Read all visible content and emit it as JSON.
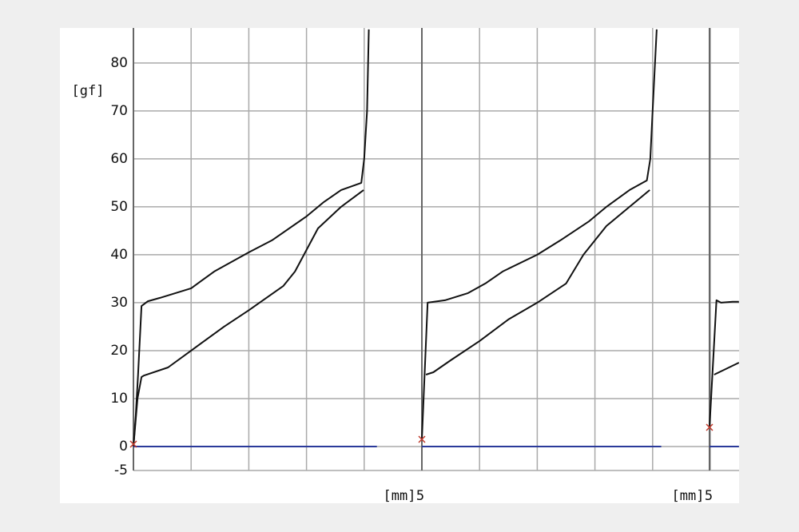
{
  "chart_data": {
    "type": "line",
    "ylabel": "[gf]",
    "ylim": [
      -5,
      87.3
    ],
    "yticks": [
      80,
      70,
      60,
      50,
      40,
      30,
      20,
      10,
      0,
      -5
    ],
    "grid": true,
    "panels": [
      {
        "xlabel": "[mm]",
        "xlim": [
          0,
          5
        ],
        "xticks": [
          {
            "value": 0,
            "label": null
          },
          {
            "value": 1,
            "label": null
          },
          {
            "value": 2,
            "label": null
          },
          {
            "value": 3,
            "label": null
          },
          {
            "value": 4,
            "label": null
          },
          5
        ],
        "marker": {
          "x": 0,
          "value": 0.5,
          "color": "#c0392b"
        },
        "series": [
          {
            "color": "#111111",
            "x": [
              0,
              0.04,
              0.08,
              0.14,
              0.25,
              0.46,
              1.0,
              1.4,
              2.0,
              2.4,
              3.0,
              3.3,
              3.6,
              3.95,
              4.0,
              4.05,
              4.08
            ],
            "values": [
              0,
              6.5,
              15,
              29.3,
              30.3,
              31,
              33,
              36.5,
              40.5,
              43,
              48,
              51,
              53.5,
              55,
              60,
              70,
              87
            ]
          },
          {
            "color": "#111111",
            "x": [
              0,
              0.07,
              0.14,
              0.18,
              0.6,
              1.0,
              1.57,
              2.01,
              2.6,
              2.8,
              3.0,
              3.2,
              3.6,
              3.99
            ],
            "values": [
              0,
              10,
              14.5,
              14.8,
              16.5,
              20,
              25,
              28.5,
              33.5,
              36.5,
              41,
              45.5,
              50,
              53.5
            ]
          },
          {
            "color": "#2b3a9a",
            "x": [
              0,
              4.22
            ],
            "values": [
              0,
              0
            ]
          }
        ]
      },
      {
        "xlabel": "[mm]",
        "xlim": [
          0,
          5
        ],
        "xticks": [
          {
            "value": 0,
            "label": null
          },
          {
            "value": 1,
            "label": null
          },
          {
            "value": 2,
            "label": null
          },
          {
            "value": 3,
            "label": null
          },
          {
            "value": 4,
            "label": null
          },
          5
        ],
        "marker": {
          "x": 0,
          "value": 1.5,
          "color": "#c0392b"
        },
        "series": [
          {
            "color": "#111111",
            "x": [
              0,
              0.1,
              0.4,
              0.8,
              1.1,
              1.4,
              2.0,
              2.4,
              2.9,
              3.2,
              3.6,
              3.9,
              3.96,
              4.0,
              4.07
            ],
            "values": [
              1.5,
              30,
              30.5,
              32,
              34,
              36.5,
              40,
              43,
              47,
              50,
              53.5,
              55.5,
              60,
              70,
              87
            ]
          },
          {
            "color": "#111111",
            "x": [
              0.07,
              0.2,
              0.5,
              1.0,
              1.5,
              2.0,
              2.5,
              2.8,
              3.2,
              3.6,
              3.95
            ],
            "values": [
              15,
              15.5,
              18,
              22,
              26.5,
              30,
              34,
              40,
              46,
              50,
              53.5
            ]
          },
          {
            "color": "#2b3a9a",
            "x": [
              0,
              4.15
            ],
            "values": [
              0,
              0
            ]
          }
        ]
      },
      {
        "xlim": [
          0,
          0.51
        ],
        "xticks": [
          {
            "value": 0,
            "label": null
          }
        ],
        "marker": {
          "x": 0,
          "value": 4,
          "color": "#c0392b"
        },
        "series": [
          {
            "color": "#111111",
            "x": [
              0,
              0.12,
              0.2,
              0.4,
              0.51
            ],
            "values": [
              4,
              30.5,
              30,
              30.2,
              30.2
            ]
          },
          {
            "color": "#111111",
            "x": [
              0.08,
              0.51
            ],
            "values": [
              15,
              17.5
            ]
          },
          {
            "color": "#2b3a9a",
            "x": [
              0,
              0.51
            ],
            "values": [
              0,
              0
            ]
          }
        ]
      }
    ]
  }
}
